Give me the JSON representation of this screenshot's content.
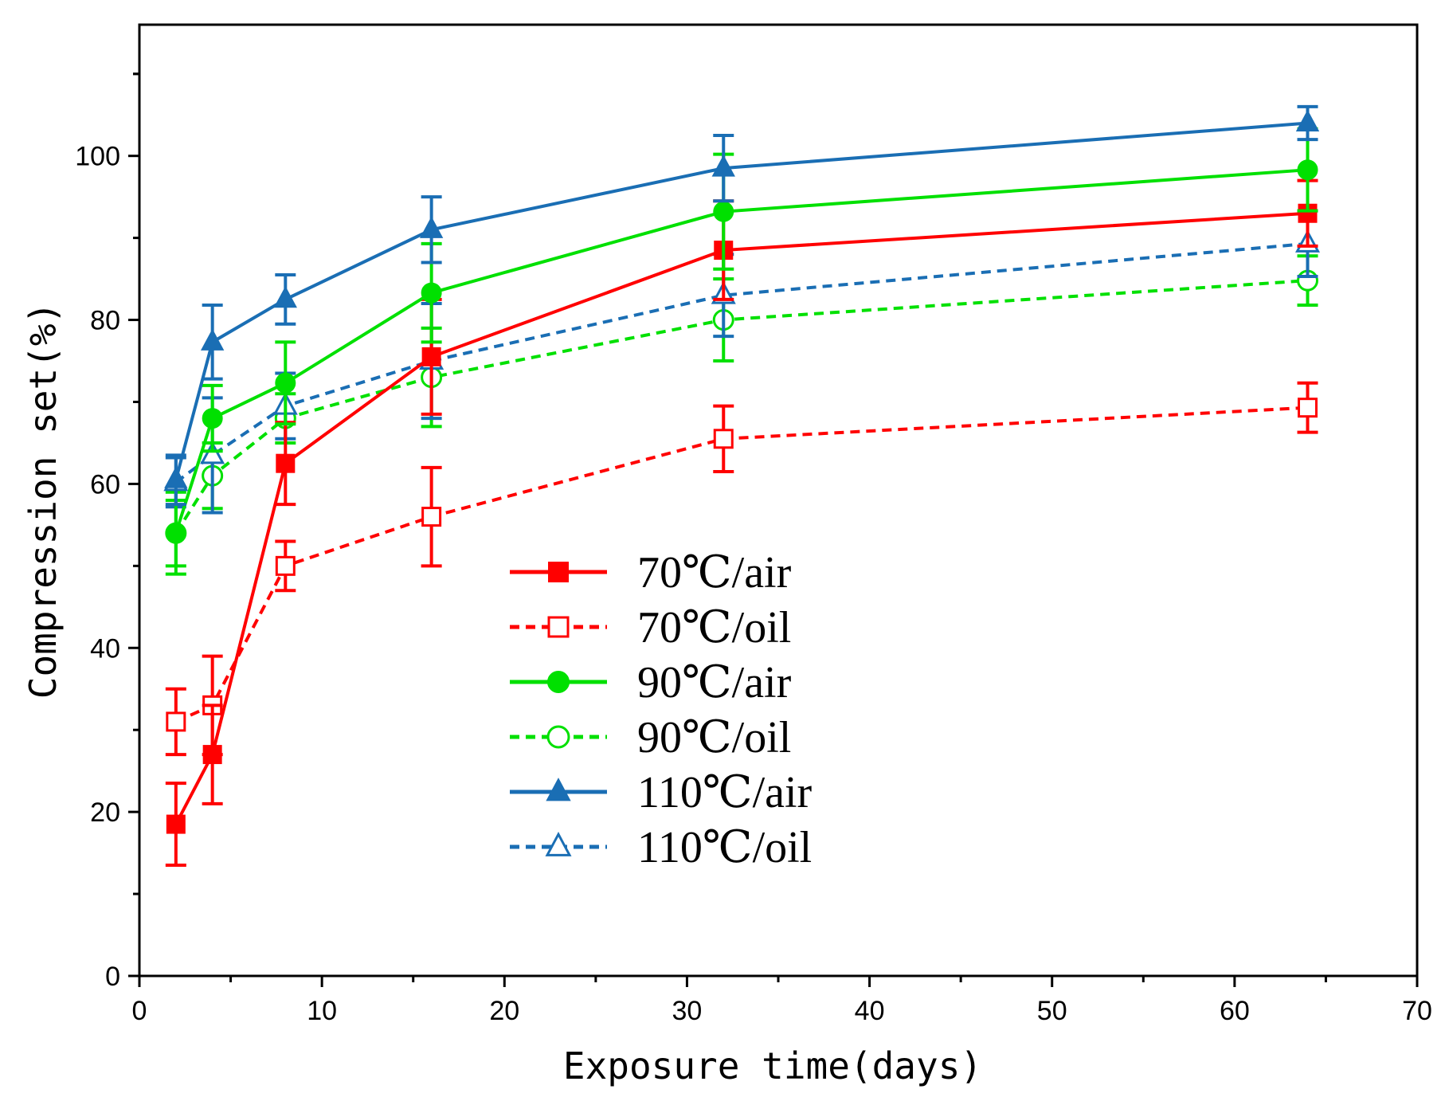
{
  "chart_data": {
    "type": "line",
    "title": "",
    "xlabel": "Exposure time(days)",
    "ylabel": "Compression set(%)",
    "xlim": [
      0,
      70
    ],
    "ylim": [
      0,
      116
    ],
    "x_ticks": [
      0,
      10,
      20,
      30,
      40,
      50,
      60,
      70
    ],
    "y_ticks": [
      0,
      20,
      40,
      60,
      80,
      100
    ],
    "x": [
      2,
      4,
      8,
      16,
      32,
      64
    ],
    "grid": false,
    "legend_position": "center",
    "series": [
      {
        "name": "70℃/air",
        "color": "#ff0000",
        "dash": "solid",
        "marker": "square",
        "filled": true,
        "values": [
          18.5,
          27,
          62.5,
          75.5,
          88.5,
          93
        ],
        "errors": [
          5,
          6,
          5,
          7,
          6,
          4
        ]
      },
      {
        "name": "70℃/oil",
        "color": "#ff0000",
        "dash": "dashed",
        "marker": "square",
        "filled": false,
        "values": [
          31,
          33,
          50,
          56,
          65.5,
          69.3
        ],
        "errors": [
          4,
          6,
          3,
          6,
          4,
          3
        ]
      },
      {
        "name": "90℃/air",
        "color": "#00e000",
        "dash": "solid",
        "marker": "circle",
        "filled": true,
        "values": [
          54,
          68,
          72.3,
          83.3,
          93.2,
          98.3
        ],
        "errors": [
          4,
          4,
          5,
          6,
          7,
          5
        ]
      },
      {
        "name": "90℃/oil",
        "color": "#00e000",
        "dash": "dashed",
        "marker": "circle",
        "filled": false,
        "values": [
          54,
          61,
          68,
          73,
          80,
          84.8
        ],
        "errors": [
          5,
          4,
          3,
          6,
          5,
          3
        ]
      },
      {
        "name": "110℃/air",
        "color": "#1a6eb4",
        "dash": "solid",
        "marker": "triangle",
        "filled": true,
        "values": [
          60.5,
          77.3,
          82.5,
          91,
          98.5,
          104
        ],
        "errors": [
          3,
          4.5,
          3,
          4,
          4,
          2
        ]
      },
      {
        "name": "110℃/oil",
        "color": "#1a6eb4",
        "dash": "dashed",
        "marker": "triangle",
        "filled": false,
        "values": [
          60.2,
          63.5,
          69.5,
          75,
          83,
          89.3
        ],
        "errors": [
          3,
          7,
          4,
          7,
          5,
          4
        ]
      }
    ]
  }
}
